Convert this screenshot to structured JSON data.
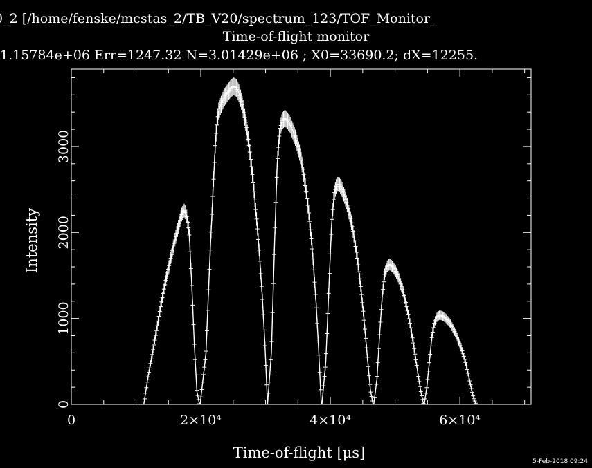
{
  "header": {
    "path_line": "0_2 [/home/fenske/mcstas_2/TB_V20/spectrum_123/TOF_Monitor_",
    "title": "Time-of-flight monitor",
    "stats_line": "1.15784e+06 Err=1247.32 N=3.01429e+06 ; X0=33690.2; dX=12255."
  },
  "timestamp": "5-Feb-2018 09:24",
  "colors": {
    "background": "#000000",
    "foreground": "#ffffff"
  },
  "chart_data": {
    "type": "line",
    "title": "Time-of-flight monitor",
    "xlabel": "Time-of-flight [μs]",
    "ylabel": "Intensity",
    "xlim": [
      0,
      71000
    ],
    "ylim": [
      0,
      3900
    ],
    "x_ticks": [
      {
        "value": 0,
        "label": "0"
      },
      {
        "value": 20000,
        "label": "2×10⁴"
      },
      {
        "value": 40000,
        "label": "4×10⁴"
      },
      {
        "value": 60000,
        "label": "6×10⁴"
      }
    ],
    "y_ticks": [
      {
        "value": 0,
        "label": "0"
      },
      {
        "value": 1000,
        "label": "1000"
      },
      {
        "value": 2000,
        "label": "2000"
      },
      {
        "value": 3000,
        "label": "3000"
      }
    ],
    "error_bars": true,
    "grid": false,
    "series": [
      {
        "x": [
          11200,
          11800,
          12500,
          13200,
          13900,
          14600,
          15300,
          15900,
          16500,
          17000,
          17400,
          17800,
          18200,
          18600,
          19000,
          19400,
          19800
        ],
        "y": [
          0,
          300,
          580,
          880,
          1180,
          1450,
          1680,
          1880,
          2060,
          2200,
          2260,
          2200,
          2000,
          1400,
          700,
          150,
          0
        ]
      },
      {
        "x": [
          19900,
          20800,
          21400,
          21900,
          22300,
          22700,
          23100,
          23500,
          23900,
          24300,
          24700,
          25100,
          25500,
          25900,
          26300,
          26700,
          27100,
          27500,
          27900,
          28300,
          28700,
          29100,
          29500,
          29900,
          30300
        ],
        "y": [
          0,
          600,
          1700,
          2500,
          3100,
          3400,
          3480,
          3550,
          3600,
          3640,
          3680,
          3700,
          3680,
          3620,
          3520,
          3380,
          3200,
          2980,
          2720,
          2420,
          2080,
          1700,
          1250,
          700,
          0
        ]
      },
      {
        "x": [
          30300,
          30900,
          31400,
          31800,
          32200,
          32600,
          33000,
          33400,
          33800,
          34200,
          34600,
          35000,
          35400,
          35800,
          36200,
          36600,
          37000,
          37400,
          37800,
          38200,
          38600
        ],
        "y": [
          0,
          600,
          1900,
          2800,
          3200,
          3300,
          3330,
          3300,
          3250,
          3180,
          3100,
          3000,
          2880,
          2720,
          2520,
          2280,
          1980,
          1620,
          1180,
          620,
          0
        ]
      },
      {
        "x": [
          38700,
          39300,
          39800,
          40200,
          40600,
          41000,
          41400,
          41800,
          42200,
          42600,
          43000,
          43400,
          43800,
          44200,
          44600,
          45000,
          45400,
          45800,
          46200,
          46600
        ],
        "y": [
          0,
          500,
          1400,
          2100,
          2450,
          2560,
          2560,
          2500,
          2420,
          2320,
          2200,
          2060,
          1890,
          1680,
          1430,
          1140,
          820,
          480,
          160,
          0
        ]
      },
      {
        "x": [
          46700,
          47200,
          47600,
          48000,
          48400,
          48800,
          49200,
          49600,
          50000,
          50400,
          50800,
          51200,
          51600,
          52000,
          52400,
          52800,
          53200,
          53600,
          54000,
          54400
        ],
        "y": [
          0,
          300,
          800,
          1250,
          1520,
          1610,
          1630,
          1600,
          1560,
          1500,
          1420,
          1320,
          1200,
          1060,
          900,
          720,
          520,
          320,
          140,
          0
        ]
      },
      {
        "x": [
          54500,
          54900,
          55300,
          55700,
          56100,
          56500,
          56900,
          57300,
          57700,
          58100,
          58500,
          58900,
          59300,
          59700,
          60100,
          60500,
          60900,
          61300,
          61700,
          62100,
          62500
        ],
        "y": [
          0,
          200,
          500,
          800,
          960,
          1020,
          1040,
          1030,
          1010,
          980,
          940,
          890,
          830,
          760,
          680,
          590,
          480,
          350,
          210,
          80,
          0
        ]
      }
    ]
  }
}
